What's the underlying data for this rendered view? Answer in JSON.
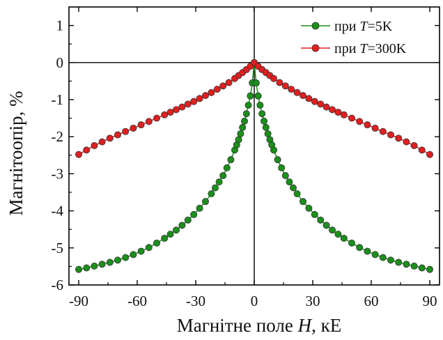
{
  "chart_data": {
    "type": "scatter",
    "xlabel_prefix": "Магнітне поле ",
    "xlabel_var": "H",
    "xlabel_suffix": ", кЕ",
    "ylabel": "Магнітоопір, %",
    "xlim": [
      -95,
      95
    ],
    "ylim": [
      -6,
      1.5
    ],
    "xticks": [
      -90,
      -60,
      -30,
      0,
      30,
      60,
      90
    ],
    "yticks": [
      -6,
      -5,
      -4,
      -3,
      -2,
      -1,
      0,
      1
    ],
    "legend_position": "top-right",
    "series": [
      {
        "name_prefix": "при ",
        "name_var": "T",
        "name_suffix": "=5K",
        "color": "#1a8f1a",
        "x": [
          0,
          1,
          2,
          3,
          4,
          5,
          6,
          7,
          8,
          9,
          10,
          12,
          14,
          16,
          18,
          20,
          22,
          25,
          28,
          31,
          34,
          37,
          40,
          43,
          46,
          50,
          54,
          58,
          62,
          66,
          70,
          74,
          78,
          82,
          86,
          90
        ],
        "y": [
          0,
          -0.55,
          -0.9,
          -1.15,
          -1.38,
          -1.58,
          -1.75,
          -1.92,
          -2.08,
          -2.22,
          -2.36,
          -2.62,
          -2.84,
          -3.05,
          -3.22,
          -3.38,
          -3.54,
          -3.75,
          -3.93,
          -4.1,
          -4.25,
          -4.39,
          -4.52,
          -4.63,
          -4.74,
          -4.87,
          -4.99,
          -5.09,
          -5.18,
          -5.26,
          -5.33,
          -5.39,
          -5.44,
          -5.49,
          -5.54,
          -5.58
        ]
      },
      {
        "name_prefix": "при ",
        "name_var": "T",
        "name_suffix": "=300K",
        "color": "#e01f1f",
        "x": [
          0,
          2,
          4,
          6,
          8,
          10,
          13,
          16,
          19,
          22,
          25,
          28,
          31,
          34,
          37,
          40,
          43,
          46,
          50,
          54,
          58,
          62,
          66,
          70,
          74,
          78,
          82,
          86,
          90
        ],
        "y": [
          0,
          -0.1,
          -0.19,
          -0.27,
          -0.35,
          -0.43,
          -0.54,
          -0.63,
          -0.72,
          -0.81,
          -0.89,
          -0.97,
          -1.05,
          -1.12,
          -1.2,
          -1.27,
          -1.34,
          -1.41,
          -1.5,
          -1.59,
          -1.68,
          -1.77,
          -1.86,
          -1.95,
          -2.04,
          -2.14,
          -2.24,
          -2.36,
          -2.48
        ]
      }
    ]
  }
}
